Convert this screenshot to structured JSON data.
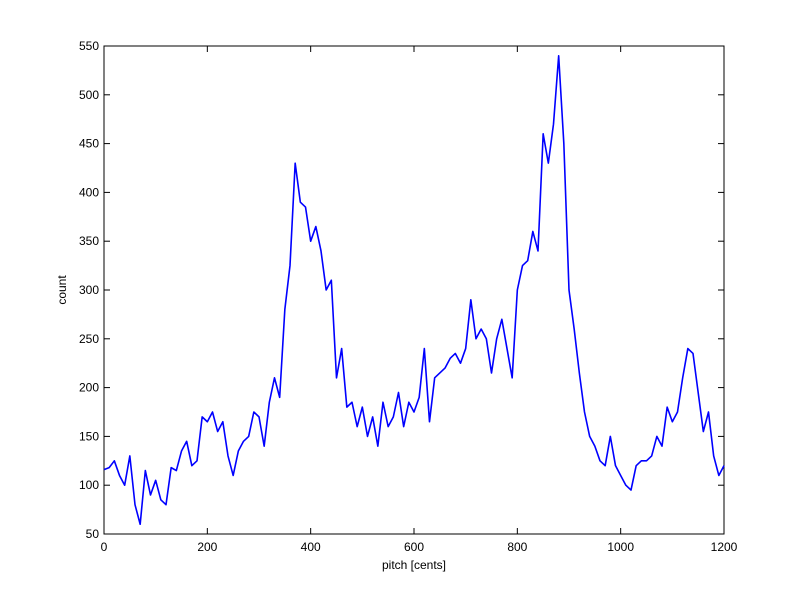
{
  "chart_data": {
    "type": "line",
    "xlabel": "pitch [cents]",
    "ylabel": "count",
    "x": [
      0,
      10,
      20,
      30,
      40,
      50,
      60,
      70,
      80,
      90,
      100,
      110,
      120,
      130,
      140,
      150,
      160,
      170,
      180,
      190,
      200,
      210,
      220,
      230,
      240,
      250,
      260,
      270,
      280,
      290,
      300,
      310,
      320,
      330,
      340,
      350,
      360,
      370,
      380,
      390,
      400,
      410,
      420,
      430,
      440,
      450,
      460,
      470,
      480,
      490,
      500,
      510,
      520,
      530,
      540,
      550,
      560,
      570,
      580,
      590,
      600,
      610,
      620,
      630,
      640,
      650,
      660,
      670,
      680,
      690,
      700,
      710,
      720,
      730,
      740,
      750,
      760,
      770,
      780,
      790,
      800,
      810,
      820,
      830,
      840,
      850,
      860,
      870,
      880,
      890,
      900,
      910,
      920,
      930,
      940,
      950,
      960,
      970,
      980,
      990,
      1000,
      1010,
      1020,
      1030,
      1040,
      1050,
      1060,
      1070,
      1080,
      1090,
      1100,
      1110,
      1120,
      1130,
      1140,
      1150,
      1160,
      1170,
      1180,
      1190,
      1200
    ],
    "series": [
      {
        "color": "#0000ff",
        "values": [
          116,
          118,
          125,
          110,
          100,
          130,
          80,
          60,
          115,
          90,
          105,
          85,
          80,
          118,
          115,
          135,
          145,
          120,
          125,
          170,
          165,
          175,
          155,
          165,
          130,
          110,
          135,
          145,
          150,
          175,
          170,
          140,
          185,
          210,
          190,
          280,
          325,
          430,
          390,
          385,
          350,
          365,
          340,
          300,
          310,
          210,
          240,
          180,
          185,
          160,
          180,
          150,
          170,
          140,
          185,
          160,
          170,
          195,
          160,
          185,
          175,
          190,
          240,
          165,
          210,
          215,
          220,
          230,
          235,
          225,
          240,
          290,
          250,
          260,
          250,
          215,
          250,
          270,
          240,
          210,
          300,
          325,
          330,
          360,
          340,
          460,
          430,
          470,
          540,
          450,
          300,
          260,
          215,
          175,
          150,
          140,
          125,
          120,
          150,
          120,
          110,
          100,
          95,
          120,
          125,
          125,
          130,
          150,
          140,
          180,
          165,
          175,
          210,
          240,
          235,
          195,
          155,
          175,
          130,
          110,
          120
        ]
      }
    ],
    "xlim": [
      0,
      1200
    ],
    "xticks": [
      0,
      200,
      400,
      600,
      800,
      1000,
      1200
    ],
    "ylim": [
      50,
      550
    ],
    "yticks": [
      50,
      100,
      150,
      200,
      250,
      300,
      350,
      400,
      450,
      500,
      550
    ]
  }
}
